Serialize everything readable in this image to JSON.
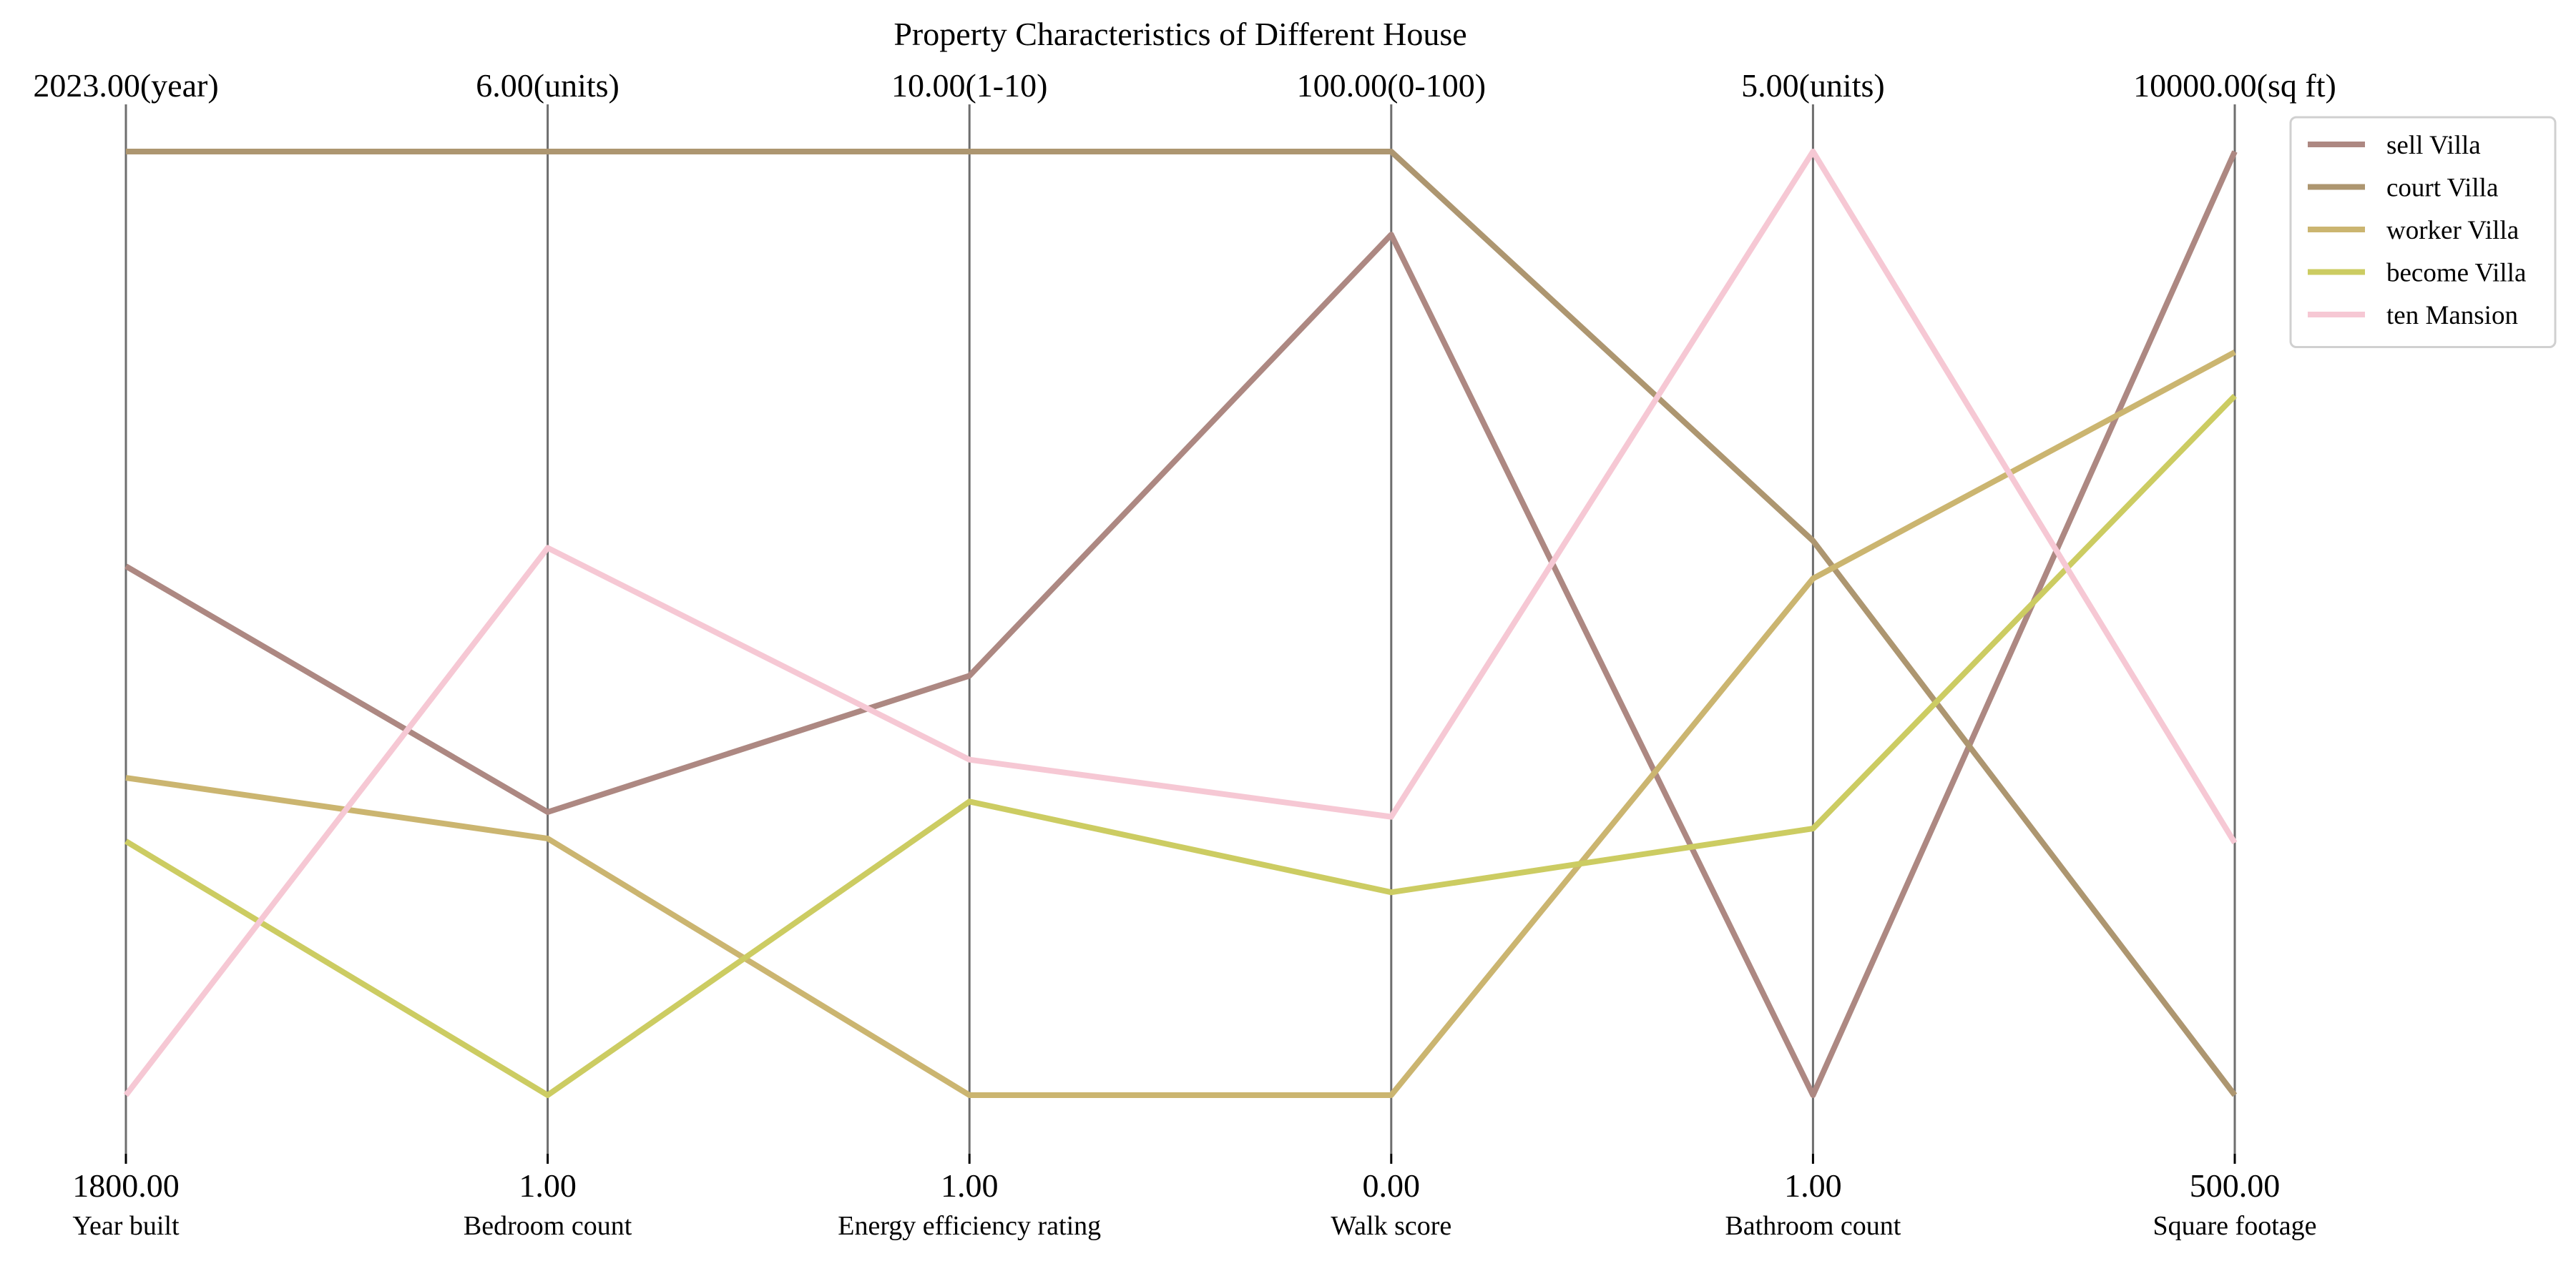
{
  "chart_data": {
    "type": "parallel-coordinates",
    "title": "Property Characteristics of Different House",
    "axes": [
      {
        "name": "Year built",
        "min": 1800,
        "max": 2023,
        "min_label": "1800.00",
        "max_label": "2023.00(year)"
      },
      {
        "name": "Bedroom count",
        "min": 1,
        "max": 6,
        "min_label": "1.00",
        "max_label": "6.00(units)"
      },
      {
        "name": "Energy efficiency rating",
        "min": 1,
        "max": 10,
        "min_label": "1.00",
        "max_label": "10.00(1-10)"
      },
      {
        "name": "Walk score",
        "min": 0,
        "max": 100,
        "min_label": "0.00",
        "max_label": "100.00(0-100)"
      },
      {
        "name": "Bathroom count",
        "min": 1,
        "max": 5,
        "min_label": "1.00",
        "max_label": "5.00(units)"
      },
      {
        "name": "Square footage",
        "min": 500,
        "max": 10000,
        "min_label": "500.00",
        "max_label": "10000.00(sq ft)"
      }
    ],
    "series": [
      {
        "name": "sell Villa",
        "color": "#ad8882",
        "values": [
          1925,
          2.5,
          5.0,
          91.2,
          1.0,
          10000
        ]
      },
      {
        "name": "court Villa",
        "color": "#ad9670",
        "values": [
          2023,
          6.0,
          10.0,
          100.0,
          3.35,
          500
        ]
      },
      {
        "name": "worker Villa",
        "color": "#cbb570",
        "values": [
          1875,
          2.36,
          1.0,
          0.0,
          3.19,
          7980
        ]
      },
      {
        "name": "become Villa",
        "color": "#cccc62",
        "values": [
          1860,
          1.0,
          3.8,
          21.5,
          2.13,
          7540
        ]
      },
      {
        "name": "ten Mansion",
        "color": "#f6c8d4",
        "values": [
          1800,
          3.9,
          4.2,
          29.5,
          5.0,
          3040
        ]
      }
    ],
    "legend": "top-right",
    "grid": false
  }
}
